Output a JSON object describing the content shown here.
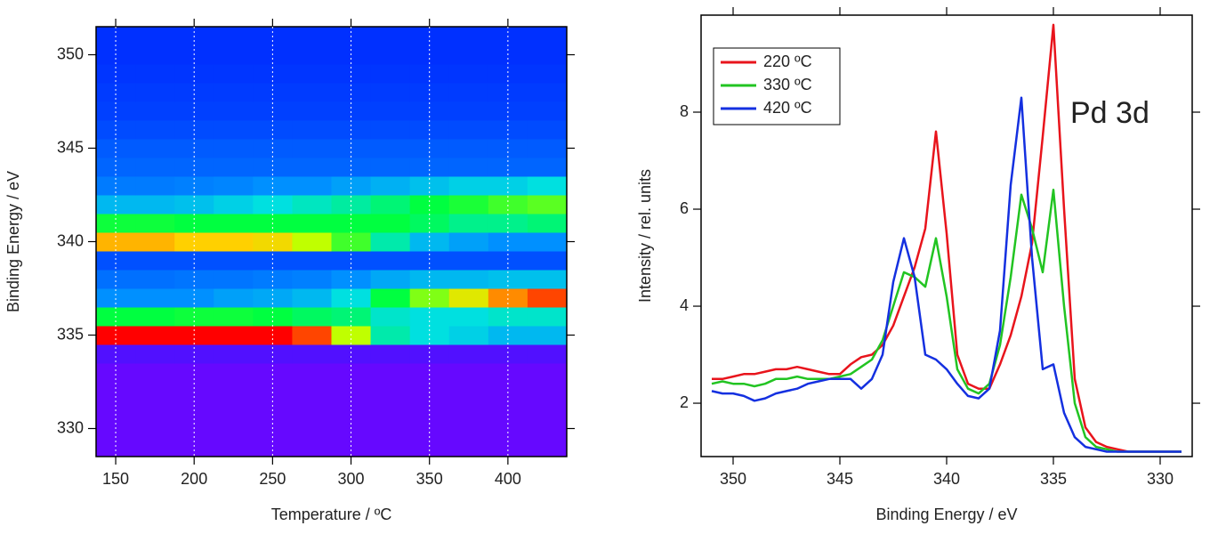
{
  "chart_data": [
    {
      "type": "heatmap",
      "x_label": "Temperature / ºC",
      "y_label": "Binding Energy / eV",
      "x": [
        150,
        175,
        200,
        225,
        250,
        275,
        300,
        325,
        350,
        375,
        400,
        425
      ],
      "y": [
        329,
        330,
        331,
        332,
        333,
        334,
        335,
        336,
        337,
        338,
        339,
        340,
        341,
        342,
        343,
        344,
        345,
        346,
        347,
        348,
        349,
        350,
        351
      ],
      "z": [
        [
          0.02,
          0.02,
          0.02,
          0.02,
          0.02,
          0.02,
          0.02,
          0.02,
          0.02,
          0.02,
          0.02,
          0.02
        ],
        [
          0.02,
          0.02,
          0.02,
          0.02,
          0.02,
          0.02,
          0.02,
          0.02,
          0.02,
          0.02,
          0.02,
          0.02
        ],
        [
          0.02,
          0.02,
          0.02,
          0.02,
          0.02,
          0.02,
          0.02,
          0.02,
          0.02,
          0.02,
          0.02,
          0.02
        ],
        [
          0.02,
          0.02,
          0.02,
          0.02,
          0.02,
          0.02,
          0.02,
          0.02,
          0.02,
          0.02,
          0.02,
          0.02
        ],
        [
          0.02,
          0.02,
          0.02,
          0.02,
          0.02,
          0.02,
          0.02,
          0.02,
          0.02,
          0.02,
          0.02,
          0.02
        ],
        [
          0.04,
          0.04,
          0.04,
          0.04,
          0.04,
          0.04,
          0.04,
          0.04,
          0.04,
          0.04,
          0.04,
          0.04
        ],
        [
          0.95,
          0.95,
          0.96,
          0.96,
          0.95,
          0.9,
          0.7,
          0.45,
          0.4,
          0.38,
          0.35,
          0.35
        ],
        [
          0.55,
          0.55,
          0.56,
          0.56,
          0.55,
          0.52,
          0.5,
          0.42,
          0.4,
          0.4,
          0.42,
          0.42
        ],
        [
          0.3,
          0.3,
          0.3,
          0.32,
          0.33,
          0.35,
          0.4,
          0.55,
          0.65,
          0.75,
          0.85,
          0.9
        ],
        [
          0.24,
          0.24,
          0.25,
          0.25,
          0.26,
          0.27,
          0.3,
          0.33,
          0.35,
          0.35,
          0.36,
          0.36
        ],
        [
          0.18,
          0.18,
          0.18,
          0.18,
          0.18,
          0.18,
          0.18,
          0.18,
          0.18,
          0.18,
          0.18,
          0.18
        ],
        [
          0.82,
          0.82,
          0.8,
          0.8,
          0.78,
          0.7,
          0.6,
          0.45,
          0.35,
          0.32,
          0.3,
          0.3
        ],
        [
          0.56,
          0.56,
          0.55,
          0.55,
          0.55,
          0.55,
          0.55,
          0.55,
          0.52,
          0.48,
          0.48,
          0.5
        ],
        [
          0.35,
          0.35,
          0.36,
          0.38,
          0.4,
          0.43,
          0.46,
          0.5,
          0.55,
          0.57,
          0.6,
          0.62
        ],
        [
          0.26,
          0.26,
          0.27,
          0.28,
          0.3,
          0.3,
          0.32,
          0.34,
          0.36,
          0.38,
          0.38,
          0.4
        ],
        [
          0.22,
          0.22,
          0.22,
          0.22,
          0.22,
          0.22,
          0.22,
          0.22,
          0.22,
          0.22,
          0.22,
          0.22
        ],
        [
          0.2,
          0.2,
          0.2,
          0.2,
          0.2,
          0.2,
          0.2,
          0.2,
          0.2,
          0.2,
          0.2,
          0.2
        ],
        [
          0.17,
          0.17,
          0.17,
          0.17,
          0.17,
          0.17,
          0.17,
          0.17,
          0.17,
          0.17,
          0.17,
          0.17
        ],
        [
          0.15,
          0.15,
          0.15,
          0.15,
          0.15,
          0.15,
          0.15,
          0.15,
          0.15,
          0.15,
          0.15,
          0.15
        ],
        [
          0.14,
          0.14,
          0.14,
          0.14,
          0.14,
          0.14,
          0.14,
          0.14,
          0.14,
          0.14,
          0.14,
          0.14
        ],
        [
          0.13,
          0.13,
          0.13,
          0.13,
          0.13,
          0.13,
          0.13,
          0.13,
          0.13,
          0.13,
          0.13,
          0.13
        ],
        [
          0.12,
          0.12,
          0.12,
          0.12,
          0.12,
          0.12,
          0.12,
          0.12,
          0.12,
          0.12,
          0.12,
          0.12
        ],
        [
          0.12,
          0.12,
          0.12,
          0.12,
          0.12,
          0.12,
          0.12,
          0.12,
          0.12,
          0.12,
          0.12,
          0.12
        ]
      ],
      "colormap": [
        [
          0,
          "#7a00ff"
        ],
        [
          0.12,
          "#0030ff"
        ],
        [
          0.3,
          "#0090ff"
        ],
        [
          0.4,
          "#00e0e0"
        ],
        [
          0.55,
          "#00ff40"
        ],
        [
          0.7,
          "#c0ff00"
        ],
        [
          0.8,
          "#ffd000"
        ],
        [
          0.95,
          "#ff0000"
        ]
      ],
      "xlim": [
        137.5,
        437.5
      ],
      "xticks": [
        150,
        200,
        250,
        300,
        350,
        400
      ],
      "ylim": [
        328.5,
        351.5
      ],
      "yticks": [
        330,
        335,
        340,
        345,
        350
      ],
      "grid": "x"
    },
    {
      "type": "line",
      "x_label": "Binding Energy / eV",
      "y_label": "Intensity / rel. units",
      "annotation": "Pd 3d",
      "legend": "top-left",
      "x": [
        351,
        350.5,
        350,
        349.5,
        349,
        348.5,
        348,
        347.5,
        347,
        346.5,
        346,
        345.5,
        345,
        344.5,
        344,
        343.5,
        343,
        342.5,
        342,
        341.5,
        341,
        340.5,
        340,
        339.5,
        339,
        338.5,
        338,
        337.5,
        337,
        336.5,
        336,
        335.5,
        335,
        334.5,
        334,
        333.5,
        333,
        332.5,
        332,
        331.5,
        331,
        330.5,
        330,
        329.5,
        329
      ],
      "series": [
        {
          "name": "220 ºC",
          "color": "#e8141c",
          "values": [
            2.5,
            2.5,
            2.55,
            2.6,
            2.6,
            2.65,
            2.7,
            2.7,
            2.75,
            2.7,
            2.65,
            2.6,
            2.6,
            2.8,
            2.95,
            3.0,
            3.2,
            3.6,
            4.2,
            4.8,
            5.6,
            7.6,
            5.5,
            3.0,
            2.4,
            2.3,
            2.3,
            2.8,
            3.4,
            4.2,
            5.3,
            7.5,
            9.8,
            6.0,
            2.5,
            1.5,
            1.2,
            1.1,
            1.05,
            1.0,
            1.0,
            1.0,
            1.0,
            1.0,
            1.0
          ]
        },
        {
          "name": "330 ºC",
          "color": "#22c422",
          "values": [
            2.4,
            2.45,
            2.4,
            2.4,
            2.35,
            2.4,
            2.5,
            2.5,
            2.55,
            2.5,
            2.5,
            2.5,
            2.55,
            2.6,
            2.75,
            2.9,
            3.3,
            4.0,
            4.7,
            4.6,
            4.4,
            5.4,
            4.2,
            2.7,
            2.3,
            2.2,
            2.4,
            3.2,
            4.6,
            6.3,
            5.6,
            4.7,
            6.4,
            4.0,
            2.0,
            1.3,
            1.1,
            1.05,
            1.0,
            1.0,
            1.0,
            1.0,
            1.0,
            1.0,
            1.0
          ]
        },
        {
          "name": "420 ºC",
          "color": "#1430e0",
          "values": [
            2.25,
            2.2,
            2.2,
            2.15,
            2.05,
            2.1,
            2.2,
            2.25,
            2.3,
            2.4,
            2.45,
            2.5,
            2.5,
            2.5,
            2.3,
            2.5,
            3.0,
            4.5,
            5.4,
            4.6,
            3.0,
            2.9,
            2.7,
            2.4,
            2.15,
            2.1,
            2.3,
            3.5,
            6.5,
            8.3,
            5.0,
            2.7,
            2.8,
            1.8,
            1.3,
            1.1,
            1.05,
            1.0,
            1.0,
            1.0,
            1.0,
            1.0,
            1.0,
            1.0,
            1.0
          ]
        }
      ],
      "xlim": [
        351.5,
        328.5
      ],
      "xticks": [
        350,
        345,
        340,
        335,
        330
      ],
      "ylim": [
        0.9,
        10
      ],
      "yticks": [
        2,
        4,
        6,
        8
      ]
    }
  ]
}
